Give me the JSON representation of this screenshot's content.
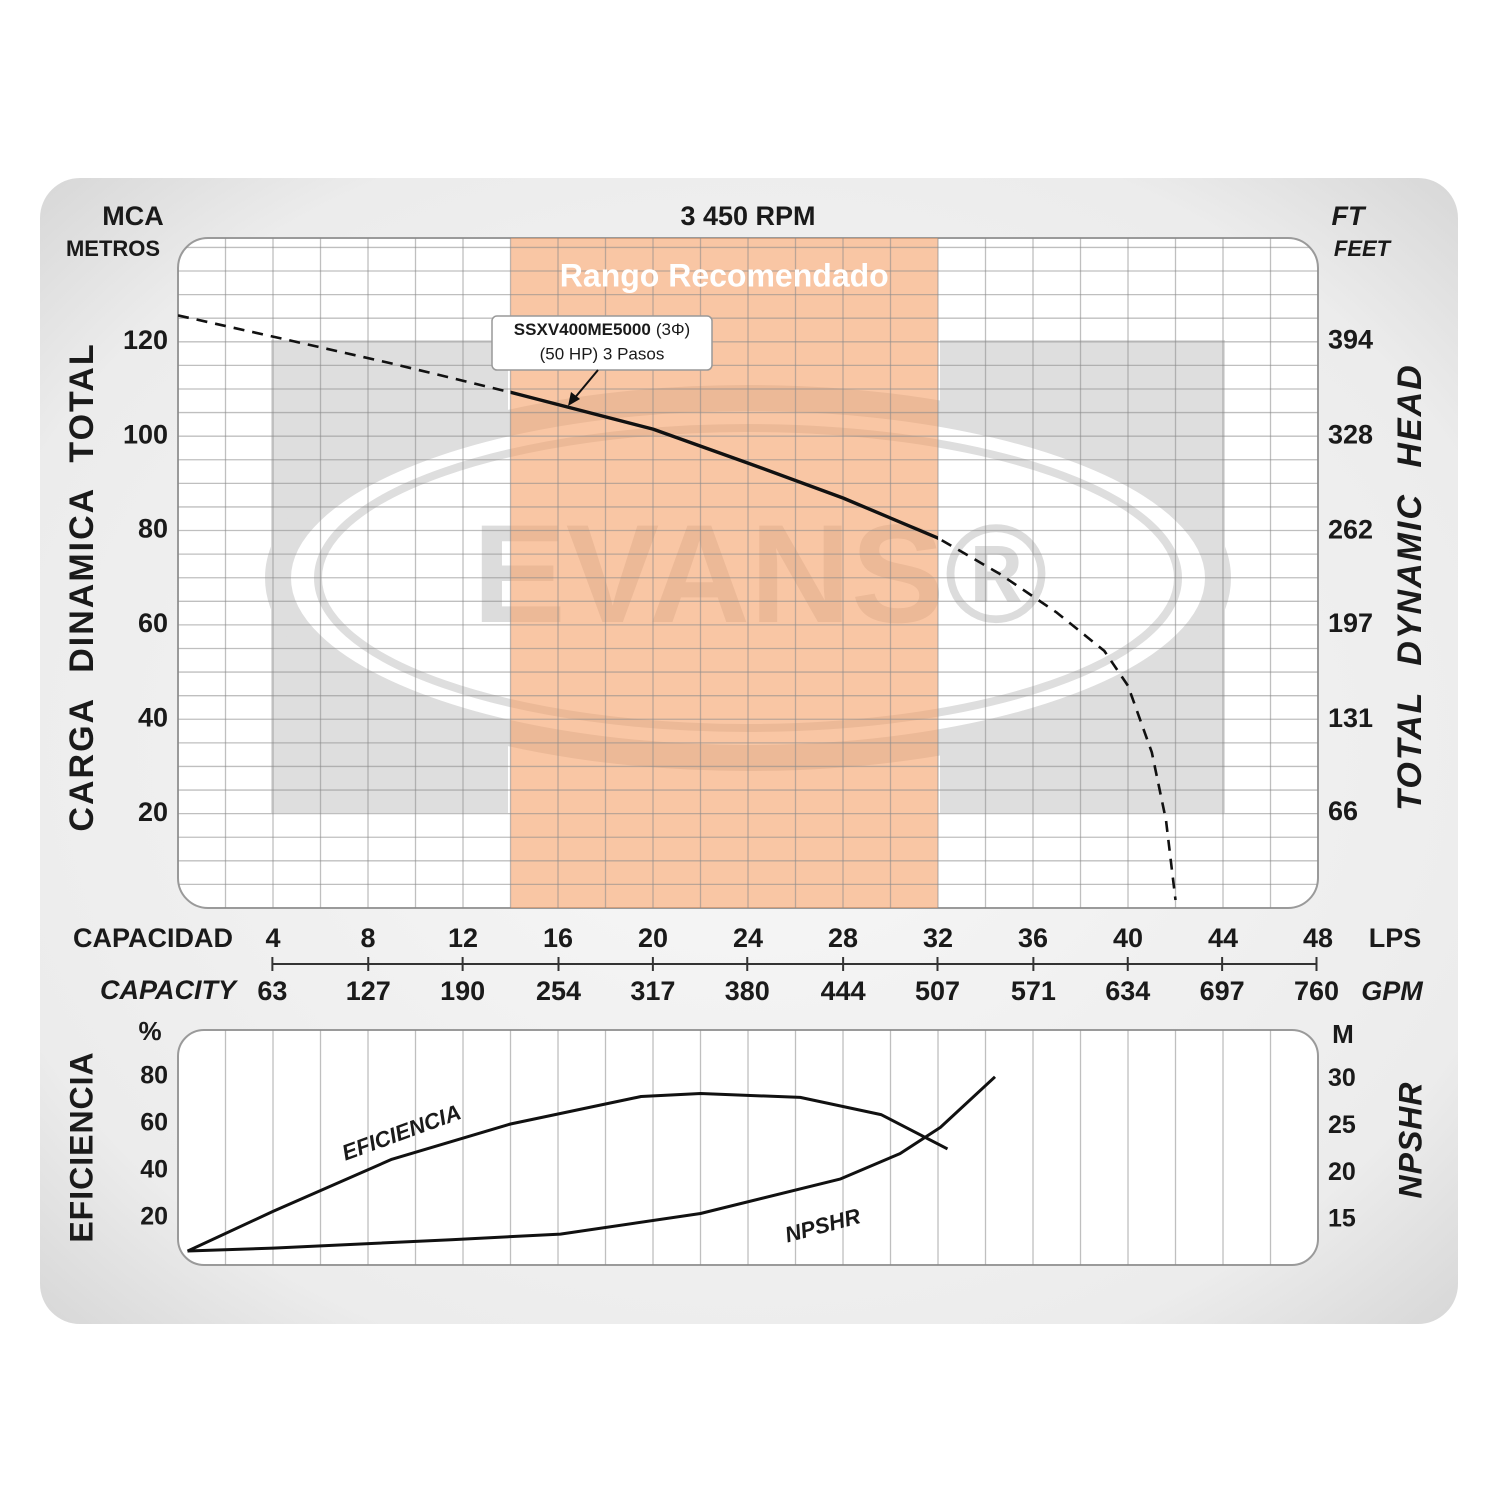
{
  "chart_data": [
    {
      "type": "line",
      "title": "3 450 RPM",
      "ylabel_unit": "MCA",
      "ylabel_unit2": "METROS",
      "ylabel": "CARGA DINAMICA TOTAL",
      "y2label_unit": "FT",
      "y2label_unit2": "FEET",
      "y2label": "TOTAL DYNAMIC HEAD",
      "xlabel": "CAPACIDAD",
      "xunit": "LPS",
      "x2label": "CAPACITY",
      "x2unit": "GPM",
      "xlim": [
        0,
        48
      ],
      "xticks": [
        4,
        8,
        12,
        16,
        20,
        24,
        28,
        32,
        36,
        40,
        44,
        48
      ],
      "xgrid": [
        2,
        4,
        6,
        8,
        10,
        12,
        14,
        16,
        18,
        20,
        22,
        24,
        26,
        28,
        30,
        32,
        34,
        36,
        38,
        40,
        42,
        44,
        46
      ],
      "x2lim": [
        0,
        761
      ],
      "x2ticks": [
        63,
        127,
        190,
        254,
        317,
        380,
        444,
        507,
        571,
        634,
        697,
        760
      ],
      "ylim": [
        0,
        142
      ],
      "yticks": [
        20,
        40,
        60,
        80,
        100,
        120
      ],
      "ygrid": [
        5,
        10,
        15,
        20,
        25,
        30,
        35,
        40,
        45,
        50,
        55,
        60,
        65,
        70,
        75,
        80,
        85,
        90,
        95,
        100,
        105,
        110,
        115,
        120,
        125,
        130,
        135,
        140
      ],
      "y2lim": [
        0,
        466
      ],
      "y2ticks": [
        66,
        131,
        197,
        262,
        328,
        394
      ],
      "recommended_range": [
        14,
        32
      ],
      "recommended_label": "Rango Recomendado",
      "watermark": "EVANS®",
      "annotation": {
        "model": "SSXV400ME5000",
        "phase": "(3Φ)",
        "detail": "(50 HP) 3 Pasos"
      },
      "series": [
        {
          "color": "#111111",
          "x": [
            0,
            4,
            9,
            14,
            20,
            24,
            28,
            32,
            34.6,
            37,
            39,
            40,
            41,
            41.6,
            42
          ],
          "values": [
            125.6,
            121.1,
            115.4,
            109.3,
            101.5,
            94.3,
            86.9,
            78.4,
            70.8,
            62.6,
            54.5,
            47.1,
            33,
            18.6,
            1.7
          ]
        }
      ]
    },
    {
      "type": "line",
      "ylabel_unit": "%",
      "ylabel": "EFICIENCIA",
      "y2label_unit": "M",
      "y2label": "NPSHR",
      "xlim": [
        0,
        48
      ],
      "xgrid": [
        2,
        4,
        6,
        8,
        10,
        12,
        14,
        16,
        18,
        20,
        22,
        24,
        26,
        28,
        30,
        32,
        34,
        36,
        38,
        40,
        42,
        44,
        46
      ],
      "ylim": [
        0,
        100
      ],
      "yticks": [
        20,
        40,
        60,
        80
      ],
      "y2lim": [
        10.2,
        35.3
      ],
      "y2ticks": [
        15,
        20,
        25,
        30
      ],
      "series": [
        {
          "name": "EFICIENCIA",
          "color": "#111111",
          "x": [
            0.4,
            4,
            9,
            14,
            19.5,
            22,
            26.2,
            29.6,
            32.4
          ],
          "values": [
            5.9,
            22.8,
            45,
            60,
            71.7,
            73,
            71.3,
            64,
            49.4
          ]
        },
        {
          "name": "NPSHR",
          "color": "#111111",
          "axis": "y2",
          "x": [
            0.4,
            4,
            11.5,
            16.1,
            22,
            27.9,
            30.4,
            32.1,
            34.4
          ],
          "values": [
            11.7,
            12.0,
            12.9,
            13.5,
            15.7,
            19.4,
            22.1,
            24.9,
            30.3
          ]
        }
      ]
    }
  ]
}
